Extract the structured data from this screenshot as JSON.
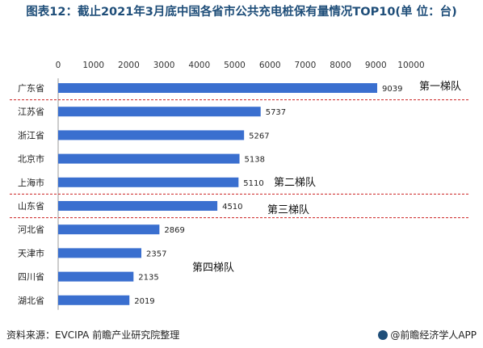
{
  "title": "图表12：截止2021年3月底中国各省市公共充电桩保有量情况TOP10(单 位：台)",
  "footer": {
    "source": "资料来源：EVCIPA 前瞻产业研究院整理",
    "brand": "@前瞻经济学人APP"
  },
  "colors": {
    "bar": "#3a6fcf",
    "separator": "#cc2222",
    "title": "#1f4e79"
  },
  "chart_data": {
    "type": "bar",
    "orientation": "horizontal",
    "categories": [
      "广东省",
      "江苏省",
      "浙江省",
      "北京市",
      "上海市",
      "山东省",
      "河北省",
      "天津市",
      "四川省",
      "湖北省"
    ],
    "values": [
      9039,
      5737,
      5267,
      5138,
      5110,
      4510,
      2869,
      2357,
      2135,
      2019
    ],
    "xlim": [
      0,
      10000
    ],
    "ticks": [
      0,
      1000,
      2000,
      3000,
      4000,
      5000,
      6000,
      7000,
      8000,
      9000,
      10000
    ],
    "tick_labels": [
      "0",
      "1000",
      "2000",
      "3000",
      "4000",
      "5000",
      "6000",
      "7000",
      "8000",
      "9000",
      "10000"
    ],
    "axis_position": "top",
    "grid": false,
    "annotations": [
      {
        "text": "第一梯队",
        "category_index": 0
      },
      {
        "text": "第二梯队",
        "category_index": 4
      },
      {
        "text": "第三梯队",
        "category_index": 5
      },
      {
        "text": "第四梯队",
        "category_index": 7
      }
    ],
    "separators_after_index": [
      0,
      4,
      5
    ]
  }
}
